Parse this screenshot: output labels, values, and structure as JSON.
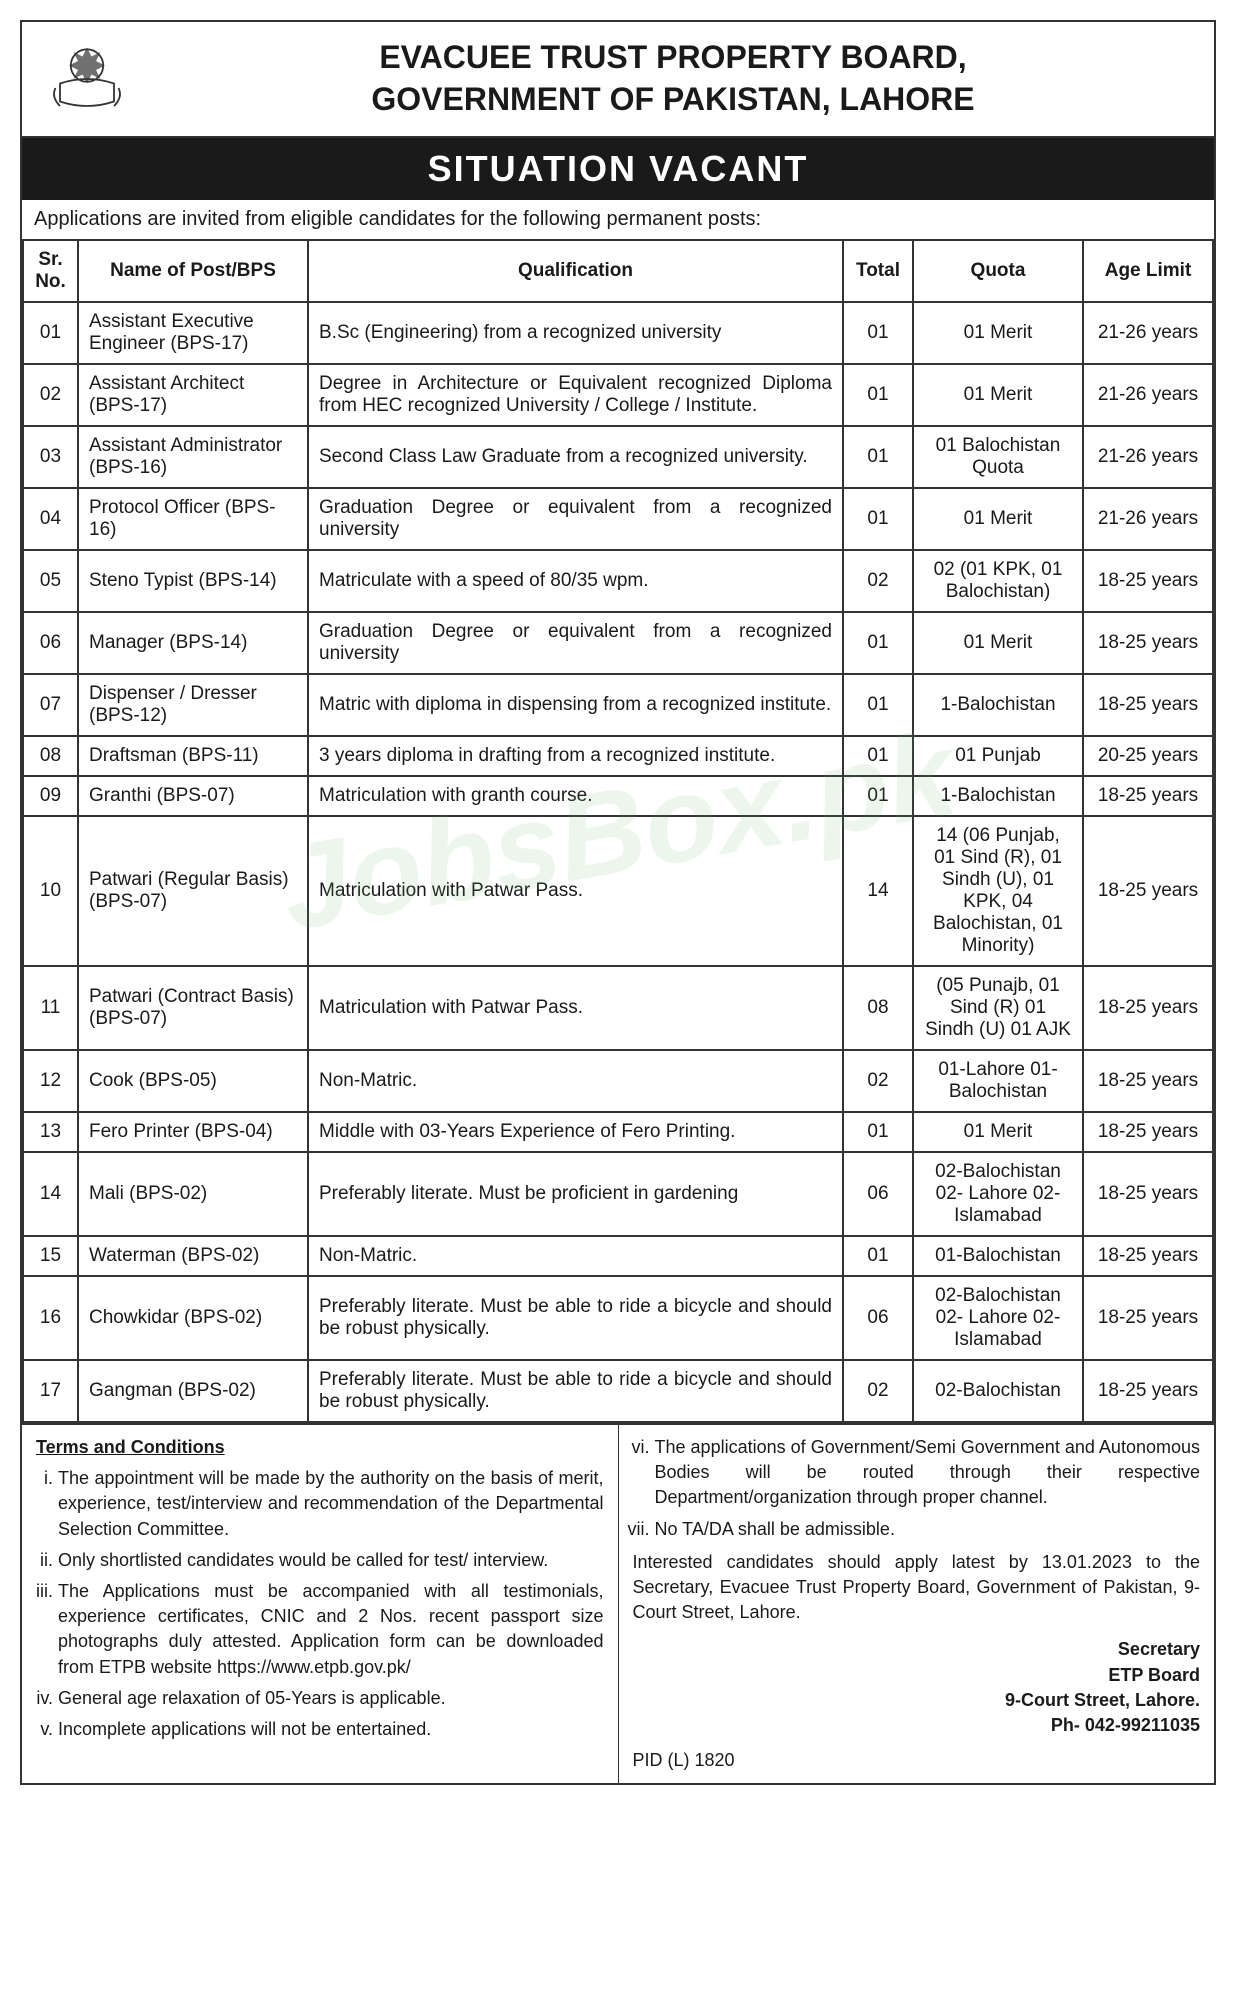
{
  "header": {
    "org_line1": "EVACUEE TRUST PROPERTY BOARD,",
    "org_line2": "GOVERNMENT OF PAKISTAN, LAHORE",
    "banner": "SITUATION VACANT",
    "intro": "Applications are invited from eligible candidates for the following permanent posts:"
  },
  "table": {
    "columns": [
      "Sr. No.",
      "Name of Post/BPS",
      "Qualification",
      "Total",
      "Quota",
      "Age Limit"
    ],
    "rows": [
      {
        "sr": "01",
        "post": "Assistant Executive Engineer (BPS-17)",
        "qual": "B.Sc (Engineering) from a recognized university",
        "total": "01",
        "quota": "01 Merit",
        "age": "21-26 years"
      },
      {
        "sr": "02",
        "post": "Assistant Architect (BPS-17)",
        "qual": "Degree in Architecture or Equivalent recognized Diploma from HEC recognized University / College / Institute.",
        "total": "01",
        "quota": "01 Merit",
        "age": "21-26 years"
      },
      {
        "sr": "03",
        "post": "Assistant Administrator (BPS-16)",
        "qual": "Second Class Law Graduate from a recognized university.",
        "total": "01",
        "quota": "01 Balochistan Quota",
        "age": "21-26 years"
      },
      {
        "sr": "04",
        "post": "Protocol Officer (BPS-16)",
        "qual": "Graduation Degree or equivalent from a recognized university",
        "total": "01",
        "quota": "01 Merit",
        "age": "21-26 years"
      },
      {
        "sr": "05",
        "post": "Steno Typist (BPS-14)",
        "qual": "Matriculate with a speed of 80/35 wpm.",
        "total": "02",
        "quota": "02 (01 KPK, 01 Balochistan)",
        "age": "18-25 years"
      },
      {
        "sr": "06",
        "post": "Manager (BPS-14)",
        "qual": "Graduation Degree or equivalent from a recognized university",
        "total": "01",
        "quota": "01 Merit",
        "age": "18-25 years"
      },
      {
        "sr": "07",
        "post": "Dispenser / Dresser (BPS-12)",
        "qual": "Matric with diploma in dispensing from a recognized institute.",
        "total": "01",
        "quota": "1-Balochistan",
        "age": "18-25 years"
      },
      {
        "sr": "08",
        "post": "Draftsman (BPS-11)",
        "qual": "3 years diploma in drafting from a recognized institute.",
        "total": "01",
        "quota": "01 Punjab",
        "age": "20-25 years"
      },
      {
        "sr": "09",
        "post": "Granthi (BPS-07)",
        "qual": "Matriculation with granth course.",
        "total": "01",
        "quota": "1-Balochistan",
        "age": "18-25 years"
      },
      {
        "sr": "10",
        "post": "Patwari (Regular Basis) (BPS-07)",
        "qual": "Matriculation with Patwar Pass.",
        "total": "14",
        "quota": "14 (06 Punjab, 01 Sind (R), 01 Sindh (U), 01 KPK, 04 Balochistan, 01 Minority)",
        "age": "18-25 years"
      },
      {
        "sr": "11",
        "post": "Patwari (Contract Basis) (BPS-07)",
        "qual": "Matriculation with Patwar Pass.",
        "total": "08",
        "quota": "(05 Punajb, 01 Sind (R) 01 Sindh (U) 01 AJK",
        "age": "18-25 years"
      },
      {
        "sr": "12",
        "post": "Cook (BPS-05)",
        "qual": "Non-Matric.",
        "total": "02",
        "quota": "01-Lahore 01-Balochistan",
        "age": "18-25 years"
      },
      {
        "sr": "13",
        "post": "Fero Printer (BPS-04)",
        "qual": "Middle with 03-Years Experience of Fero Printing.",
        "total": "01",
        "quota": "01 Merit",
        "age": "18-25 years"
      },
      {
        "sr": "14",
        "post": "Mali (BPS-02)",
        "qual": "Preferably literate. Must be proficient in gardening",
        "total": "06",
        "quota": "02-Balochistan 02- Lahore 02-Islamabad",
        "age": "18-25 years"
      },
      {
        "sr": "15",
        "post": "Waterman (BPS-02)",
        "qual": "Non-Matric.",
        "total": "01",
        "quota": "01-Balochistan",
        "age": "18-25 years"
      },
      {
        "sr": "16",
        "post": "Chowkidar (BPS-02)",
        "qual": "Preferably literate. Must be able to ride a bicycle and should be robust physically.",
        "total": "06",
        "quota": "02-Balochistan 02- Lahore 02-Islamabad",
        "age": "18-25 years"
      },
      {
        "sr": "17",
        "post": "Gangman (BPS-02)",
        "qual": "Preferably literate. Must be able to ride a bicycle and should be robust physically.",
        "total": "02",
        "quota": "02-Balochistan",
        "age": "18-25 years"
      }
    ]
  },
  "terms": {
    "heading": "Terms and Conditions",
    "left": [
      "The appointment will be made by the authority on the basis of merit, experience, test/interview and recommendation of the Departmental Selection Committee.",
      "Only shortlisted candidates would be called for test/ interview.",
      "The Applications must be accompanied with all testimonials, experience certificates, CNIC and 2 Nos. recent passport size photographs duly attested. Application form can be downloaded from ETPB website https://www.etpb.gov.pk/",
      "General age relaxation of 05-Years is applicable.",
      "Incomplete applications will not be entertained."
    ],
    "right": [
      "The applications of Government/Semi Government and Autonomous Bodies will be routed through their respective Department/organization through proper channel.",
      "No TA/DA shall be admissible."
    ],
    "apply_note": "Interested candidates should apply latest by 13.01.2023 to the Secretary, Evacuee Trust Property Board, Government of Pakistan, 9-Court Street, Lahore.",
    "pid": "PID (L) 1820",
    "signature": {
      "title": "Secretary",
      "org": "ETP Board",
      "address": "9-Court Street, Lahore.",
      "phone": "Ph- 042-99211035"
    }
  },
  "watermark": "JobsBox.pk",
  "styling": {
    "border_color": "#333333",
    "banner_bg": "#1a1a1a",
    "banner_fg": "#ffffff",
    "body_bg": "#ffffff",
    "text_color": "#1a1a1a",
    "watermark_color": "rgba(100,180,100,0.12)",
    "heading_fontsize": 32,
    "banner_fontsize": 36,
    "cell_fontsize": 19
  }
}
